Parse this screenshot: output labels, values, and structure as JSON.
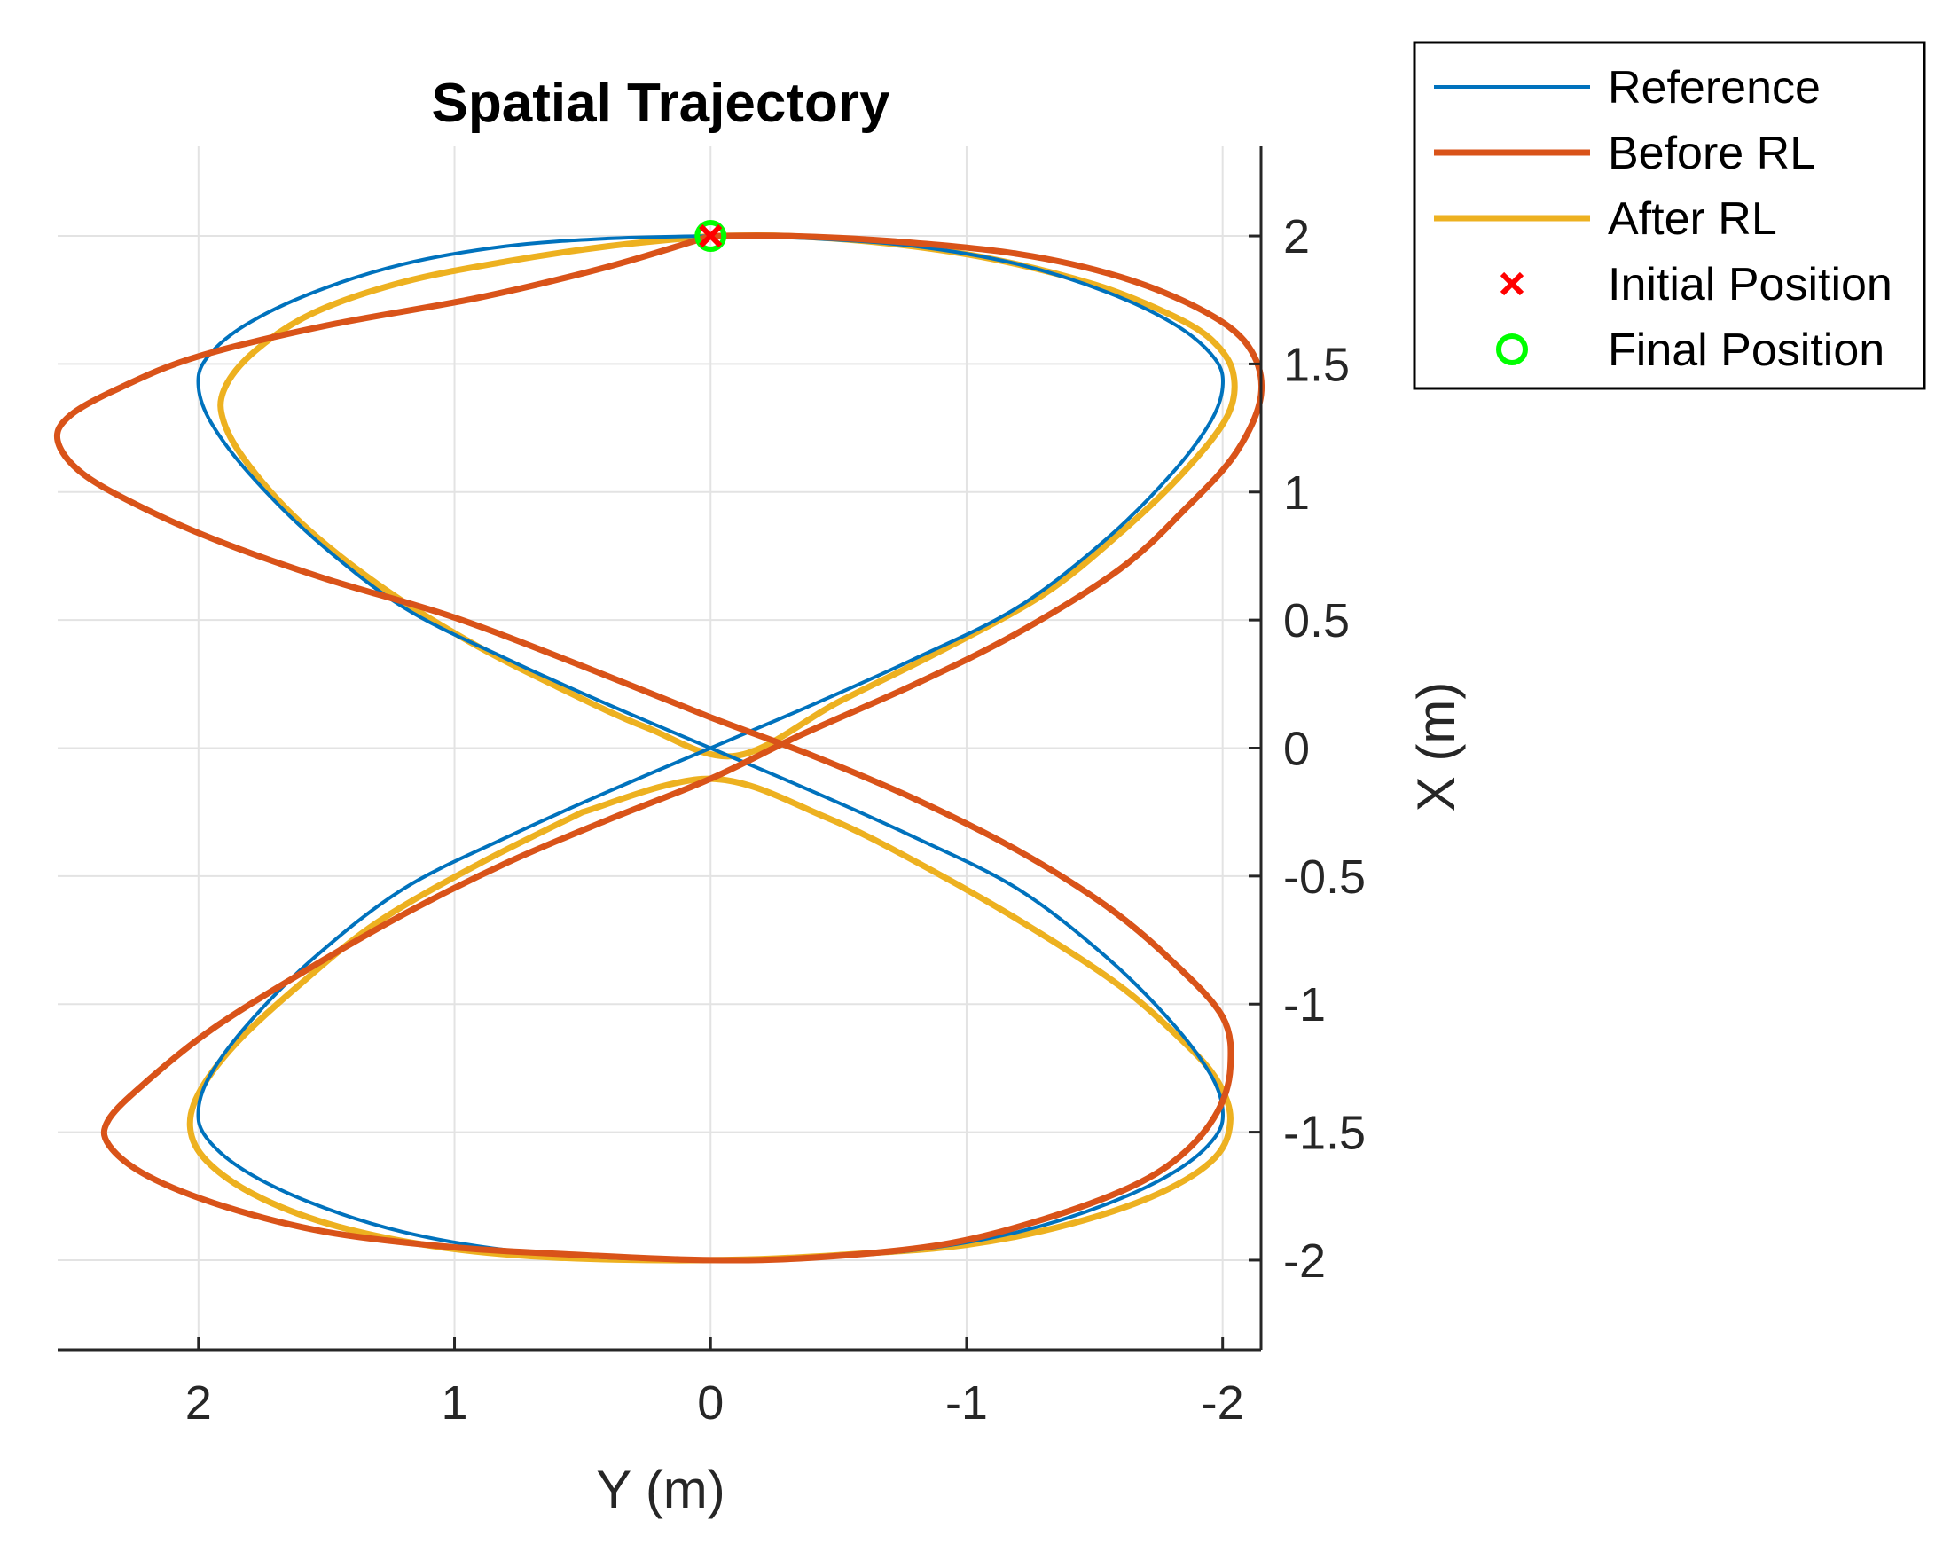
{
  "chart_data": {
    "type": "line",
    "title": "Spatial Trajectory",
    "xlabel": "Y (m)",
    "ylabel": "X (m)",
    "x_axis": {
      "lim": [
        2.55,
        -2.15
      ],
      "reversed": true,
      "ticks": [
        2,
        1,
        0,
        -1,
        -2
      ],
      "tick_labels": [
        "2",
        "1",
        "0",
        "-1",
        "-2"
      ]
    },
    "y_axis": {
      "lim": [
        -2.35,
        2.35
      ],
      "ticks": [
        2,
        1.5,
        1,
        0.5,
        0,
        -0.5,
        -1,
        -1.5,
        -2
      ],
      "tick_labels": [
        "2",
        "1.5",
        "1",
        "0.5",
        "0",
        "-0.5",
        "-1",
        "-1.5",
        "-2"
      ],
      "location": "right"
    },
    "grid": true,
    "legend_location": "top-right outside",
    "series": [
      {
        "name": "Reference",
        "color": "#0072BD",
        "points": [
          [
            0,
            2.0
          ],
          [
            0.4,
            1.99
          ],
          [
            0.8,
            1.96
          ],
          [
            1.2,
            1.89
          ],
          [
            1.55,
            1.78
          ],
          [
            1.82,
            1.65
          ],
          [
            1.97,
            1.52
          ],
          [
            2.0,
            1.41
          ],
          [
            1.95,
            1.27
          ],
          [
            1.8,
            1.07
          ],
          [
            1.55,
            0.82
          ],
          [
            1.2,
            0.55
          ],
          [
            0.8,
            0.35
          ],
          [
            0.4,
            0.17
          ],
          [
            0,
            0.0
          ],
          [
            -0.4,
            -0.17
          ],
          [
            -0.8,
            -0.35
          ],
          [
            -1.2,
            -0.55
          ],
          [
            -1.55,
            -0.82
          ],
          [
            -1.8,
            -1.07
          ],
          [
            -1.95,
            -1.27
          ],
          [
            -2.0,
            -1.41
          ],
          [
            -1.97,
            -1.52
          ],
          [
            -1.82,
            -1.65
          ],
          [
            -1.55,
            -1.78
          ],
          [
            -1.2,
            -1.89
          ],
          [
            -0.8,
            -1.96
          ],
          [
            -0.4,
            -1.99
          ],
          [
            0,
            -2.0
          ],
          [
            0.4,
            -1.99
          ],
          [
            0.8,
            -1.96
          ],
          [
            1.2,
            -1.89
          ],
          [
            1.55,
            -1.78
          ],
          [
            1.82,
            -1.65
          ],
          [
            1.97,
            -1.52
          ],
          [
            2.0,
            -1.41
          ],
          [
            1.95,
            -1.27
          ],
          [
            1.8,
            -1.07
          ],
          [
            1.55,
            -0.82
          ],
          [
            1.2,
            -0.55
          ],
          [
            0.8,
            -0.35
          ],
          [
            0.4,
            -0.17
          ],
          [
            0,
            0.0
          ],
          [
            -0.4,
            0.17
          ],
          [
            -0.8,
            0.35
          ],
          [
            -1.2,
            0.55
          ],
          [
            -1.55,
            0.82
          ],
          [
            -1.8,
            1.07
          ],
          [
            -1.95,
            1.27
          ],
          [
            -2.0,
            1.41
          ],
          [
            -1.97,
            1.52
          ],
          [
            -1.82,
            1.65
          ],
          [
            -1.55,
            1.78
          ],
          [
            -1.2,
            1.89
          ],
          [
            -0.8,
            1.96
          ],
          [
            -0.4,
            1.99
          ],
          [
            0,
            2.0
          ]
        ]
      },
      {
        "name": "Before RL",
        "color": "#D95319",
        "points": [
          [
            0,
            2.0
          ],
          [
            0.4,
            1.88
          ],
          [
            0.9,
            1.76
          ],
          [
            1.5,
            1.65
          ],
          [
            2.0,
            1.53
          ],
          [
            2.3,
            1.41
          ],
          [
            2.5,
            1.3
          ],
          [
            2.55,
            1.2
          ],
          [
            2.45,
            1.07
          ],
          [
            2.2,
            0.93
          ],
          [
            1.9,
            0.8
          ],
          [
            1.5,
            0.66
          ],
          [
            1.0,
            0.51
          ],
          [
            0.5,
            0.32
          ],
          [
            0.0,
            0.12
          ],
          [
            -0.4,
            -0.03
          ],
          [
            -0.8,
            -0.2
          ],
          [
            -1.2,
            -0.4
          ],
          [
            -1.55,
            -0.62
          ],
          [
            -1.8,
            -0.83
          ],
          [
            -2.0,
            -1.05
          ],
          [
            -2.03,
            -1.25
          ],
          [
            -1.98,
            -1.42
          ],
          [
            -1.85,
            -1.58
          ],
          [
            -1.65,
            -1.71
          ],
          [
            -1.3,
            -1.84
          ],
          [
            -0.9,
            -1.94
          ],
          [
            -0.4,
            -1.99
          ],
          [
            0,
            -2.0
          ],
          [
            0.5,
            -1.98
          ],
          [
            1.0,
            -1.95
          ],
          [
            1.5,
            -1.89
          ],
          [
            1.9,
            -1.79
          ],
          [
            2.2,
            -1.67
          ],
          [
            2.35,
            -1.55
          ],
          [
            2.35,
            -1.45
          ],
          [
            2.2,
            -1.3
          ],
          [
            1.95,
            -1.1
          ],
          [
            1.6,
            -0.88
          ],
          [
            1.2,
            -0.65
          ],
          [
            0.8,
            -0.45
          ],
          [
            0.4,
            -0.28
          ],
          [
            0.0,
            -0.12
          ],
          [
            -0.35,
            0.05
          ],
          [
            -0.8,
            0.25
          ],
          [
            -1.2,
            0.45
          ],
          [
            -1.6,
            0.7
          ],
          [
            -1.85,
            0.93
          ],
          [
            -2.05,
            1.15
          ],
          [
            -2.15,
            1.38
          ],
          [
            -2.1,
            1.57
          ],
          [
            -1.92,
            1.71
          ],
          [
            -1.6,
            1.84
          ],
          [
            -1.2,
            1.93
          ],
          [
            -0.7,
            1.98
          ],
          [
            -0.3,
            2.0
          ],
          [
            0,
            2.0
          ]
        ]
      },
      {
        "name": "After RL",
        "color": "#EDB120",
        "points": [
          [
            0,
            2.0
          ],
          [
            0.4,
            1.96
          ],
          [
            0.8,
            1.9
          ],
          [
            1.2,
            1.82
          ],
          [
            1.55,
            1.7
          ],
          [
            1.78,
            1.55
          ],
          [
            1.9,
            1.4
          ],
          [
            1.9,
            1.27
          ],
          [
            1.8,
            1.1
          ],
          [
            1.6,
            0.88
          ],
          [
            1.3,
            0.64
          ],
          [
            0.95,
            0.42
          ],
          [
            0.6,
            0.24
          ],
          [
            0.25,
            0.08
          ],
          [
            -0.1,
            -0.03
          ],
          [
            -0.5,
            0.18
          ],
          [
            -0.9,
            0.38
          ],
          [
            -1.3,
            0.6
          ],
          [
            -1.6,
            0.84
          ],
          [
            -1.85,
            1.08
          ],
          [
            -2.02,
            1.3
          ],
          [
            -2.04,
            1.47
          ],
          [
            -1.95,
            1.6
          ],
          [
            -1.78,
            1.7
          ],
          [
            -1.5,
            1.81
          ],
          [
            -1.1,
            1.91
          ],
          [
            -0.7,
            1.97
          ],
          [
            -0.3,
            2.0
          ],
          [
            0,
            2.0
          ]
        ],
        "points_lower": [
          [
            0.5,
            -0.25
          ],
          [
            0.9,
            -0.45
          ],
          [
            1.3,
            -0.68
          ],
          [
            1.6,
            -0.92
          ],
          [
            1.85,
            -1.15
          ],
          [
            2.0,
            -1.35
          ],
          [
            2.03,
            -1.5
          ],
          [
            1.95,
            -1.63
          ],
          [
            1.75,
            -1.76
          ],
          [
            1.45,
            -1.87
          ],
          [
            1.05,
            -1.95
          ],
          [
            0.6,
            -1.99
          ],
          [
            0,
            -2.0
          ],
          [
            -0.5,
            -1.98
          ],
          [
            -1.0,
            -1.94
          ],
          [
            -1.4,
            -1.86
          ],
          [
            -1.75,
            -1.74
          ],
          [
            -1.97,
            -1.6
          ],
          [
            -2.03,
            -1.45
          ],
          [
            -1.98,
            -1.3
          ],
          [
            -1.85,
            -1.15
          ],
          [
            -1.6,
            -0.93
          ],
          [
            -1.25,
            -0.7
          ],
          [
            -0.85,
            -0.47
          ],
          [
            -0.45,
            -0.27
          ],
          [
            0.0,
            -0.12
          ],
          [
            0.5,
            -0.25
          ]
        ]
      }
    ],
    "markers": [
      {
        "name": "Initial Position",
        "symbol": "x",
        "color": "#FF0000",
        "x": 0,
        "y": 2.0
      },
      {
        "name": "Final Position",
        "symbol": "o",
        "color": "#00FF00",
        "x": 0,
        "y": 2.0
      }
    ]
  }
}
